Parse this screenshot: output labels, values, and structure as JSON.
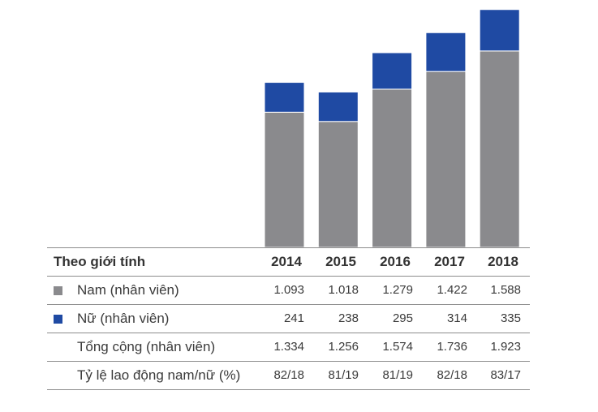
{
  "colors": {
    "male": "#8a8a8d",
    "female": "#1f4aa3"
  },
  "chart_data": {
    "type": "bar",
    "stacked": true,
    "categories": [
      "2014",
      "2015",
      "2016",
      "2017",
      "2018"
    ],
    "series": [
      {
        "name": "Nam (nhân viên)",
        "values": [
          1093,
          1018,
          1279,
          1422,
          1588
        ]
      },
      {
        "name": "Nữ (nhân viên)",
        "values": [
          241,
          238,
          295,
          314,
          335
        ]
      }
    ],
    "ylim": [
      0,
      2000
    ],
    "grid": false
  },
  "table": {
    "header_label": "Theo giới tính",
    "years": [
      "2014",
      "2015",
      "2016",
      "2017",
      "2018"
    ],
    "rows": [
      {
        "label": "Nam (nhân viên)",
        "values": [
          "1.093",
          "1.018",
          "1.279",
          "1.422",
          "1.588"
        ]
      },
      {
        "label": "Nữ (nhân viên)",
        "values": [
          "241",
          "238",
          "295",
          "314",
          "335"
        ]
      },
      {
        "label": "Tổng cộng (nhân viên)",
        "values": [
          "1.334",
          "1.256",
          "1.574",
          "1.736",
          "1.923"
        ]
      },
      {
        "label": "Tỷ lệ lao động nam/nữ (%)",
        "values": [
          "82/18",
          "81/19",
          "81/19",
          "82/18",
          "83/17"
        ]
      }
    ]
  }
}
